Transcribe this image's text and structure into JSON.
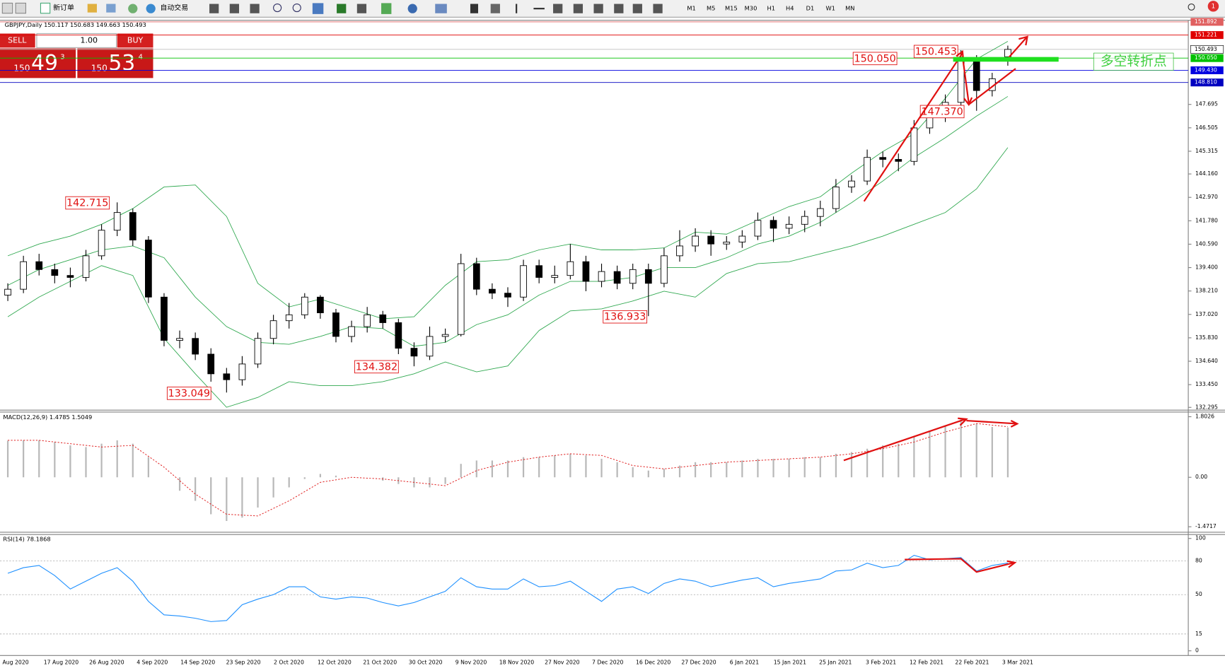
{
  "toolbar": {
    "buttons": [
      "新订单",
      "自动交易"
    ],
    "timeframes": [
      "M1",
      "M5",
      "M15",
      "M30",
      "H1",
      "H4",
      "D1",
      "W1",
      "MN"
    ],
    "notifications": "1"
  },
  "trade_panel": {
    "sell": "SELL",
    "buy": "BUY",
    "lots": "1.00",
    "sell_price": [
      "150",
      "49",
      "3"
    ],
    "buy_price": [
      "150",
      "53",
      "4"
    ]
  },
  "chart": {
    "title": "GBPJPY,Daily  150.117 150.683 149.663 150.493",
    "ylim": [
      132.295,
      151.892
    ],
    "yticks": [
      147.695,
      146.505,
      145.315,
      {
        "value": 144.16,
        "label": "144.160"
      },
      {
        "value": 142.97,
        "label": "142.970"
      },
      {
        "value": 141.78,
        "label": "141.780"
      },
      {
        "value": 140.59,
        "label": "140.590"
      },
      {
        "value": 139.4,
        "label": "139.400"
      },
      {
        "value": 138.21,
        "label": "138.210"
      },
      {
        "value": 137.02,
        "label": "137.020"
      },
      {
        "value": 135.83,
        "label": "135.830"
      },
      {
        "value": 134.64,
        "label": "134.640"
      },
      {
        "value": 133.45,
        "label": "133.450"
      },
      132.295
    ],
    "levels": [
      {
        "value": 151.892,
        "color": "#e06060"
      },
      {
        "value": 151.221,
        "color": "#e00000"
      },
      {
        "value": 150.493,
        "color": "#c0c0c0"
      },
      {
        "value": 150.05,
        "label": "150.050",
        "color": "#00c000"
      },
      {
        "value": 149.43,
        "label": "149.430",
        "color": "#0000e0"
      },
      {
        "value": 148.81,
        "label": "148.810",
        "color": "#0000c0"
      }
    ],
    "dates": [
      "Aug 2020",
      "17 Aug 2020",
      "26 Aug 2020",
      "4 Sep 2020",
      "14 Sep 2020",
      "23 Sep 2020",
      "2 Oct 2020",
      "12 Oct 2020",
      "21 Oct 2020",
      "30 Oct 2020",
      "9 Nov 2020",
      "18 Nov 2020",
      "27 Nov 2020",
      "7 Dec 2020",
      "16 Dec 2020",
      "27 Dec 2020",
      "6 Jan 2021",
      "15 Jan 2021",
      "25 Jan 2021",
      "3 Feb 2021",
      "12 Feb 2021",
      "22 Feb 2021",
      "3 Mar 2021"
    ],
    "candles": [
      [
        138.0,
        138.6,
        137.7,
        138.3
      ],
      [
        138.3,
        140.0,
        138.1,
        139.7
      ],
      [
        139.7,
        140.1,
        139.0,
        139.3
      ],
      [
        139.3,
        139.6,
        138.6,
        139.0
      ],
      [
        139.0,
        139.4,
        138.4,
        138.9
      ],
      [
        138.9,
        140.3,
        138.7,
        140.0
      ],
      [
        140.0,
        141.6,
        139.8,
        141.3
      ],
      [
        141.3,
        142.715,
        141.0,
        142.2
      ],
      [
        142.2,
        142.4,
        140.5,
        140.8
      ],
      [
        140.8,
        141.0,
        137.6,
        137.9
      ],
      [
        137.9,
        138.1,
        135.4,
        135.7
      ],
      [
        135.7,
        136.2,
        135.3,
        135.8
      ],
      [
        135.8,
        136.1,
        134.7,
        135.0
      ],
      [
        135.0,
        135.3,
        133.6,
        134.0
      ],
      [
        134.0,
        134.3,
        133.049,
        133.7
      ],
      [
        133.7,
        134.9,
        133.4,
        134.5
      ],
      [
        134.5,
        136.1,
        134.3,
        135.8
      ],
      [
        135.8,
        137.0,
        135.5,
        136.7
      ],
      [
        136.7,
        137.6,
        136.3,
        137.0
      ],
      [
        137.0,
        138.1,
        136.8,
        137.9
      ],
      [
        137.9,
        138.0,
        136.8,
        137.1
      ],
      [
        137.1,
        137.3,
        135.6,
        135.9
      ],
      [
        135.9,
        136.7,
        135.6,
        136.4
      ],
      [
        136.4,
        137.4,
        136.1,
        137.0
      ],
      [
        137.0,
        137.2,
        136.3,
        136.6
      ],
      [
        136.6,
        136.8,
        135.0,
        135.3
      ],
      [
        135.3,
        135.6,
        134.382,
        134.9
      ],
      [
        134.9,
        136.4,
        134.7,
        135.9
      ],
      [
        135.9,
        136.3,
        135.6,
        136.0
      ],
      [
        136.0,
        140.1,
        135.9,
        139.6
      ],
      [
        139.6,
        139.9,
        138.0,
        138.3
      ],
      [
        138.3,
        138.6,
        137.8,
        138.1
      ],
      [
        138.1,
        138.4,
        137.4,
        137.9
      ],
      [
        137.9,
        139.8,
        137.7,
        139.5
      ],
      [
        139.5,
        139.8,
        138.6,
        138.9
      ],
      [
        138.9,
        139.5,
        138.6,
        139.0
      ],
      [
        139.0,
        140.6,
        138.8,
        139.7
      ],
      [
        139.7,
        140.0,
        138.2,
        138.7
      ],
      [
        138.7,
        139.6,
        138.4,
        139.2
      ],
      [
        139.2,
        139.5,
        138.3,
        138.6
      ],
      [
        138.6,
        139.6,
        138.3,
        139.3
      ],
      [
        139.3,
        139.6,
        136.933,
        138.6
      ],
      [
        138.6,
        140.4,
        138.4,
        140.0
      ],
      [
        140.0,
        141.3,
        139.7,
        140.5
      ],
      [
        140.5,
        141.4,
        140.2,
        141.0
      ],
      [
        141.0,
        141.3,
        140.0,
        140.6
      ],
      [
        140.6,
        141.0,
        140.3,
        140.7
      ],
      [
        140.7,
        141.3,
        140.4,
        141.0
      ],
      [
        141.0,
        142.2,
        140.8,
        141.8
      ],
      [
        141.8,
        142.0,
        140.7,
        141.4
      ],
      [
        141.4,
        142.0,
        141.1,
        141.6
      ],
      [
        141.6,
        142.3,
        141.2,
        142.0
      ],
      [
        142.0,
        142.8,
        141.5,
        142.4
      ],
      [
        142.4,
        143.9,
        142.2,
        143.5
      ],
      [
        143.5,
        144.1,
        143.2,
        143.8
      ],
      [
        143.8,
        145.4,
        143.6,
        145.0
      ],
      [
        145.0,
        145.3,
        144.5,
        144.9
      ],
      [
        144.9,
        145.2,
        144.3,
        144.8
      ],
      [
        144.8,
        146.9,
        144.6,
        146.5
      ],
      [
        146.5,
        147.5,
        146.2,
        147.1
      ],
      [
        147.1,
        148.2,
        146.8,
        147.8
      ],
      [
        147.8,
        150.453,
        147.5,
        150.0
      ],
      [
        150.0,
        150.2,
        147.37,
        148.4
      ],
      [
        148.4,
        149.3,
        148.1,
        149.0
      ],
      [
        150.117,
        150.683,
        149.663,
        150.493
      ]
    ],
    "bollinger": {
      "upper": [
        140.0,
        140.6,
        141.0,
        141.6,
        142.4,
        143.5,
        143.6,
        142.0,
        138.6,
        137.4,
        137.8,
        137.3,
        136.8,
        136.9,
        138.5,
        139.7,
        139.8,
        140.3,
        140.6,
        140.3,
        140.3,
        140.4,
        141.2,
        141.1,
        141.8,
        142.5,
        143.0,
        144.2,
        145.3,
        146.2,
        148.0,
        150.0,
        150.9
      ],
      "middle": [
        138.5,
        139.3,
        139.8,
        140.3,
        140.5,
        139.9,
        137.9,
        136.4,
        135.6,
        135.5,
        135.9,
        136.4,
        136.3,
        135.4,
        135.6,
        136.5,
        137.0,
        138.0,
        138.7,
        138.7,
        138.9,
        139.4,
        139.4,
        139.9,
        140.6,
        141.0,
        141.7,
        142.7,
        143.8,
        145.0,
        146.0,
        147.1,
        148.1
      ],
      "lower": [
        136.9,
        137.9,
        138.7,
        139.5,
        139.0,
        135.8,
        134.0,
        132.3,
        132.8,
        133.6,
        133.4,
        133.4,
        133.6,
        134.0,
        134.6,
        134.1,
        134.4,
        136.2,
        137.2,
        137.3,
        137.7,
        138.2,
        137.9,
        139.1,
        139.6,
        139.7,
        140.1,
        140.5,
        141.0,
        141.6,
        142.2,
        143.4,
        145.5
      ]
    },
    "annotations": [
      "142.715",
      "133.049",
      "134.382",
      "136.933",
      "150.453",
      "150.050",
      "147.370"
    ],
    "note": "多空转折点"
  },
  "macd": {
    "title": "MACD(12,26,9) 1.4785 1.5049",
    "ylim": [
      -1.4717,
      1.8026
    ],
    "yticks": [
      1.8026,
      {
        "value": 0,
        "label": "0.00"
      },
      -1.4717
    ],
    "histogram": [
      1.09,
      1.1,
      1.1,
      1.05,
      0.95,
      0.9,
      1.0,
      1.1,
      1.0,
      0.6,
      0.0,
      -0.4,
      -0.7,
      -1.1,
      -1.3,
      -1.2,
      -0.9,
      -0.6,
      -0.3,
      -0.05,
      0.1,
      0.05,
      0.0,
      0.0,
      -0.1,
      -0.2,
      -0.3,
      -0.3,
      -0.2,
      0.4,
      0.5,
      0.5,
      0.5,
      0.6,
      0.6,
      0.65,
      0.7,
      0.65,
      0.55,
      0.45,
      0.3,
      0.2,
      0.25,
      0.35,
      0.45,
      0.45,
      0.45,
      0.5,
      0.55,
      0.55,
      0.55,
      0.6,
      0.6,
      0.7,
      0.75,
      0.85,
      0.95,
      1.0,
      1.2,
      1.35,
      1.55,
      1.75,
      1.6,
      1.5,
      1.4785
    ],
    "signal": [
      1.1,
      1.1,
      1.0,
      0.9,
      0.95,
      0.3,
      -0.5,
      -1.1,
      -1.15,
      -0.7,
      -0.15,
      0.0,
      -0.05,
      -0.15,
      -0.25,
      0.2,
      0.45,
      0.6,
      0.7,
      0.65,
      0.35,
      0.25,
      0.35,
      0.45,
      0.5,
      0.55,
      0.6,
      0.7,
      0.85,
      1.05,
      1.35,
      1.6,
      1.5049
    ]
  },
  "rsi": {
    "title": "RSI(14) 78.1868",
    "ylim": [
      0,
      100
    ],
    "yticks": [
      100,
      80,
      50,
      15,
      0
    ],
    "values": [
      69,
      74,
      76,
      67,
      55,
      62,
      69,
      74,
      62,
      44,
      32,
      31,
      29,
      26,
      27,
      41,
      46,
      50,
      57,
      57,
      48,
      46,
      48,
      47,
      43,
      40,
      43,
      48,
      53,
      65,
      57,
      55,
      55,
      64,
      57,
      58,
      62,
      53,
      44,
      55,
      57,
      51,
      60,
      64,
      62,
      57,
      60,
      63,
      65,
      57,
      60,
      62,
      64,
      71,
      72,
      78,
      74,
      76,
      85,
      81,
      82,
      83,
      71,
      76,
      78.1868
    ]
  }
}
